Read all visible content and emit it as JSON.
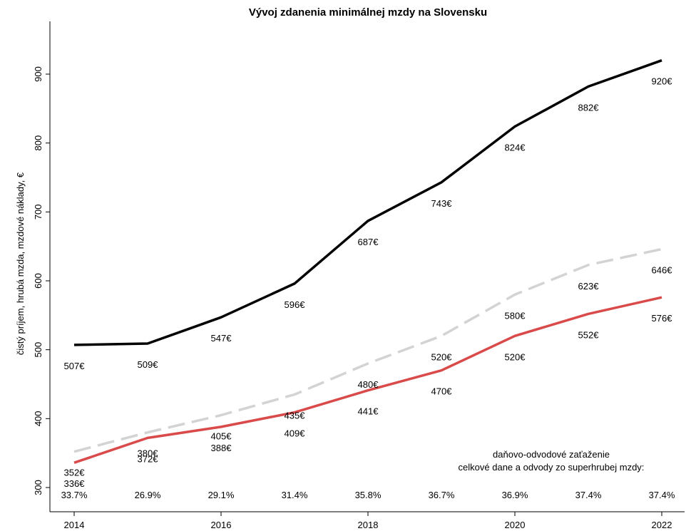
{
  "chart_data": {
    "type": "line",
    "title": "Vývoj zdanenia minimálnej mzdy na Slovensku",
    "xlabel": "",
    "ylabel": "čistý príjem, hrubá mzda, mzdové náklady, €",
    "x": [
      2014,
      2015,
      2016,
      2017,
      2018,
      2019,
      2020,
      2021,
      2022
    ],
    "x_ticks": [
      "2014",
      "2016",
      "2018",
      "2020",
      "2022"
    ],
    "y_ticks": [
      "300",
      "400",
      "500",
      "600",
      "700",
      "800",
      "900"
    ],
    "xlim": [
      2014,
      2022
    ],
    "ylim": [
      300,
      920
    ],
    "grid": false,
    "legend": "none",
    "series": [
      {
        "color": "#000000",
        "dash": "solid",
        "values": [
          507,
          509,
          547,
          596,
          687,
          743,
          824,
          882,
          920
        ],
        "labels": [
          "507€",
          "509€",
          "547€",
          "596€",
          "687€",
          "743€",
          "824€",
          "882€",
          "920€"
        ]
      },
      {
        "color": "#d3d3d3",
        "dash": "dashed",
        "values": [
          352,
          380,
          405,
          435,
          480,
          520,
          580,
          623,
          646
        ],
        "labels": [
          "352€",
          "380€",
          "405€",
          "435€",
          "480€",
          "520€",
          "580€",
          "623€",
          "646€"
        ]
      },
      {
        "color": "#d94a4a",
        "dash": "solid",
        "values": [
          336,
          372,
          388,
          409,
          441,
          470,
          520,
          552,
          576
        ],
        "labels": [
          "336€",
          "372€",
          "388€",
          "409€",
          "441€",
          "470€",
          "520€",
          "552€",
          "576€"
        ]
      }
    ],
    "burden": {
      "line1": "daňovo-odvodové zaťaženie",
      "line2": "celkové dane a odvody zo superhrubej mzdy:",
      "values": [
        "33.7%",
        "26.9%",
        "29.1%",
        "31.4%",
        "35.8%",
        "36.7%",
        "36.9%",
        "37.4%",
        "37.4%"
      ]
    }
  }
}
